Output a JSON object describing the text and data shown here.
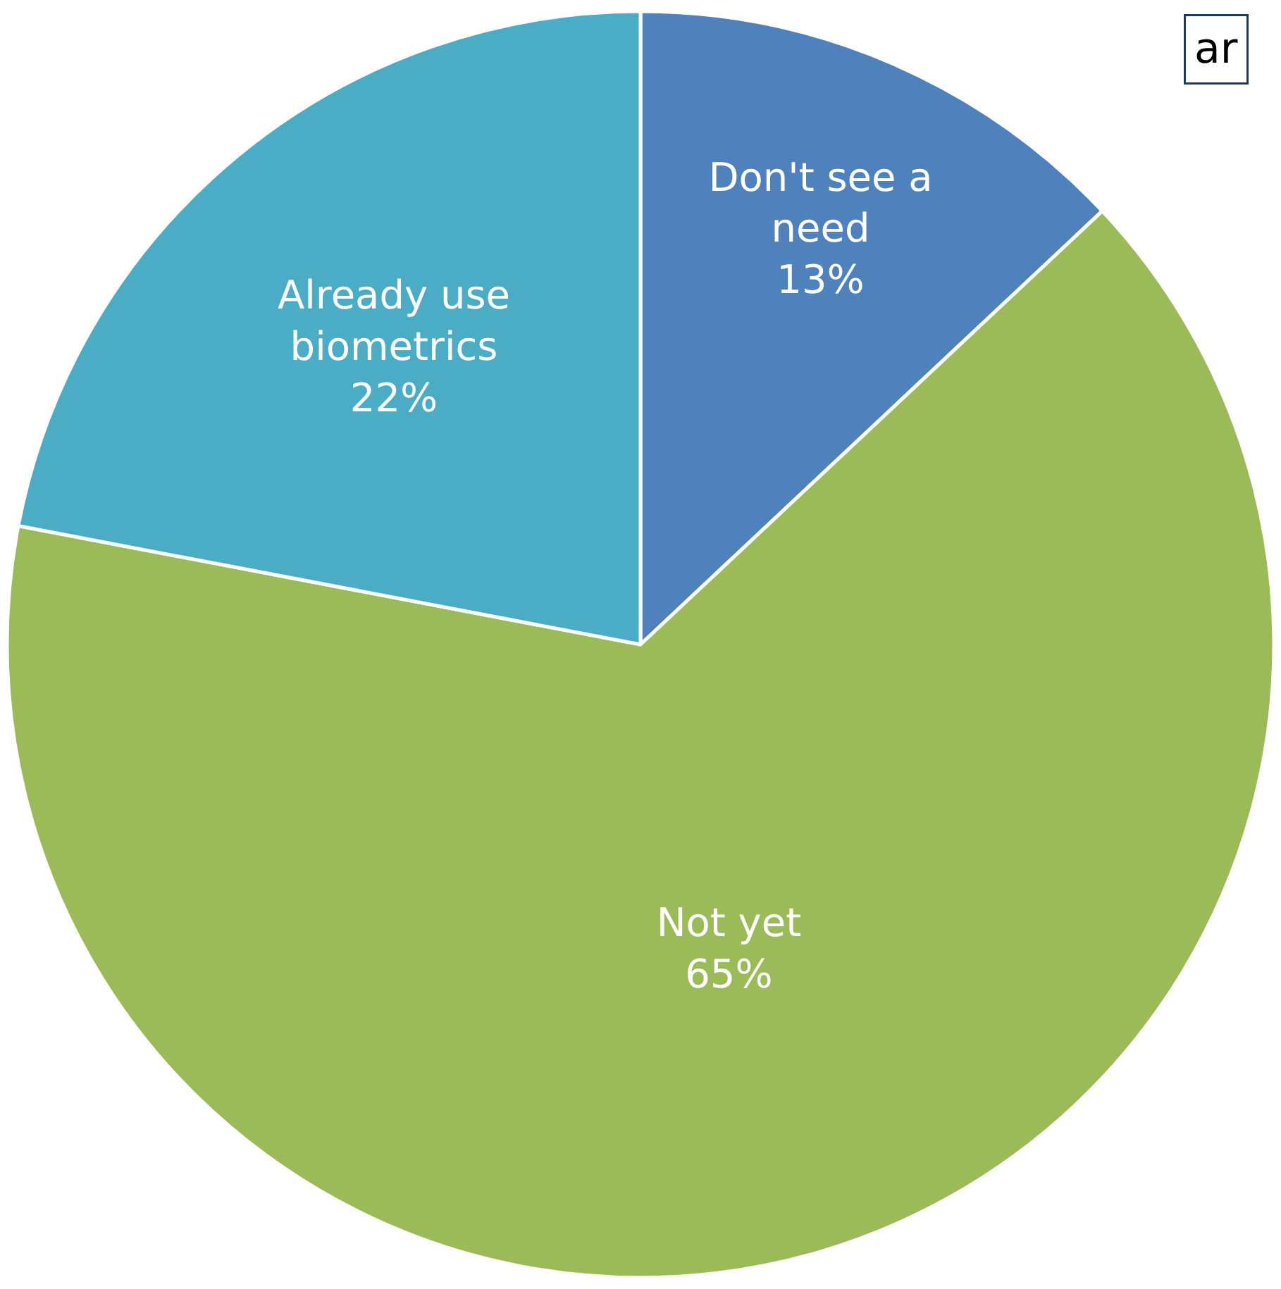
{
  "chart_data": {
    "type": "pie",
    "categories": [
      "Don't see a need",
      "Not yet",
      "Already use biometrics"
    ],
    "values": [
      13,
      65,
      22
    ],
    "value_labels": [
      "13%",
      "65%",
      "22%"
    ],
    "colors": [
      "#4f81bd",
      "#9bbb59",
      "#4bacc6"
    ],
    "legend": false,
    "annotations": [
      "ar"
    ]
  }
}
